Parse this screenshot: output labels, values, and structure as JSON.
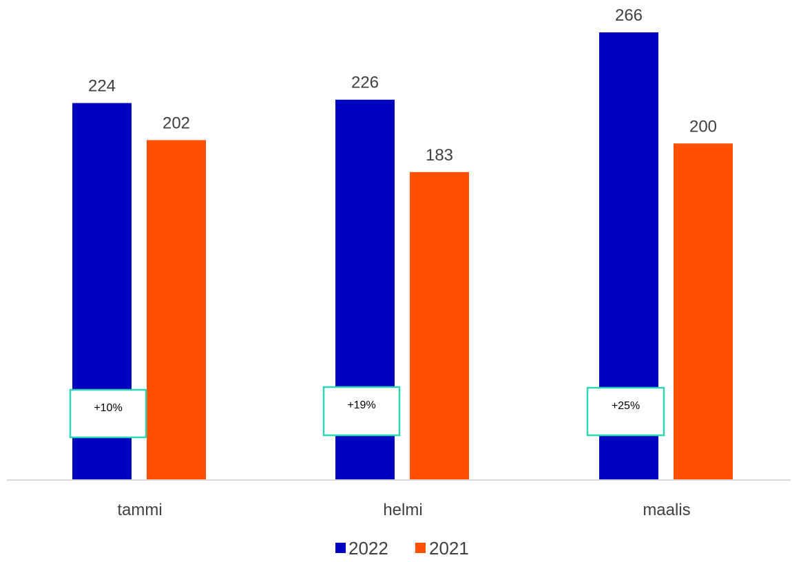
{
  "chart_data": {
    "type": "bar",
    "categories": [
      "tammi",
      "helmi",
      "maalis"
    ],
    "series": [
      {
        "name": "2022",
        "values": [
          224,
          226,
          266
        ],
        "color": "#0000BF"
      },
      {
        "name": "2021",
        "values": [
          202,
          183,
          200
        ],
        "color": "#FF5000"
      }
    ],
    "annotations": [
      "+10%",
      "+19%",
      "+25%"
    ],
    "annotation_border_color": "#2ED5B5",
    "ylim": [
      0,
      266
    ],
    "grid": false,
    "legend_position": "bottom-center",
    "axis_line_color": "#D9D9D9",
    "label_color": "#404040"
  }
}
